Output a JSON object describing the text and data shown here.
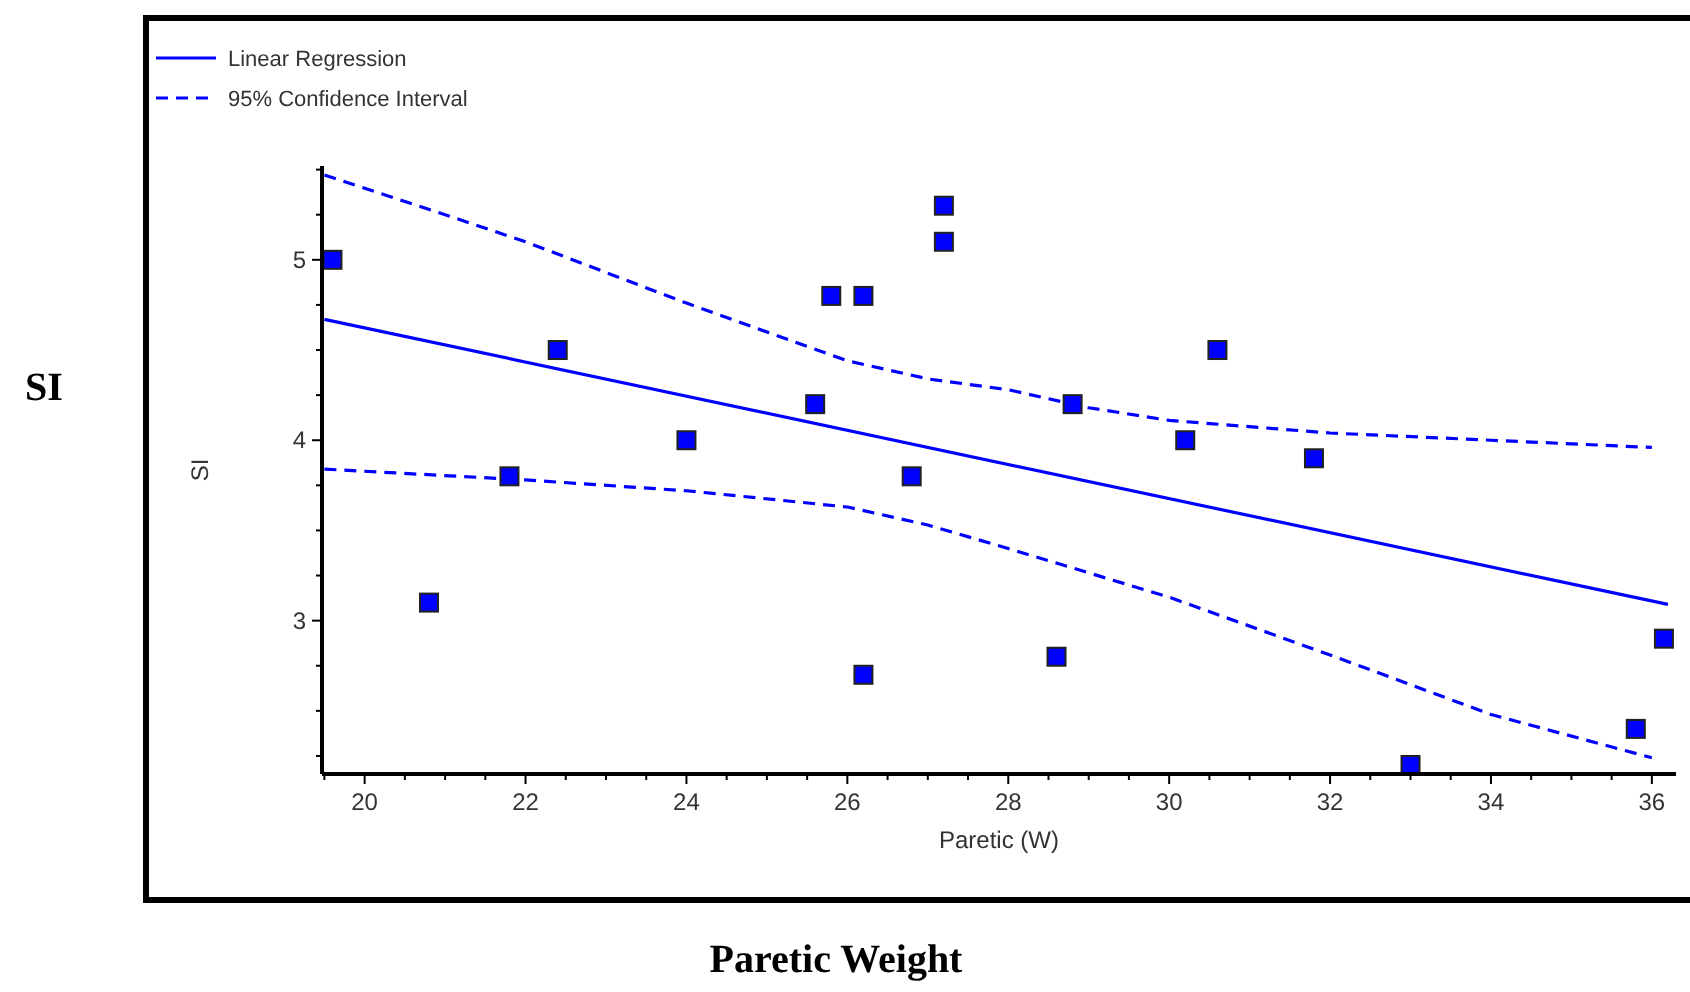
{
  "chart_data": {
    "type": "scatter",
    "xlabel": "Paretic (W)",
    "ylabel": "SI",
    "annotations": [
      "SI",
      "Paretic Weight"
    ],
    "xlim": [
      19.47,
      36.3
    ],
    "ylim": [
      2.15,
      5.52
    ],
    "xticks": [
      {
        "value": 19.5,
        "label": null
      },
      20,
      {
        "value": 20.5,
        "label": null
      },
      {
        "value": 21,
        "label": null
      },
      {
        "value": 21.5,
        "label": null
      },
      22,
      {
        "value": 22.5,
        "label": null
      },
      {
        "value": 23,
        "label": null
      },
      {
        "value": 23.5,
        "label": null
      },
      24,
      {
        "value": 24.5,
        "label": null
      },
      {
        "value": 25,
        "label": null
      },
      {
        "value": 25.5,
        "label": null
      },
      26,
      {
        "value": 26.5,
        "label": null
      },
      {
        "value": 27,
        "label": null
      },
      {
        "value": 27.5,
        "label": null
      },
      28,
      {
        "value": 28.5,
        "label": null
      },
      {
        "value": 29,
        "label": null
      },
      {
        "value": 29.5,
        "label": null
      },
      30,
      {
        "value": 30.5,
        "label": null
      },
      {
        "value": 31,
        "label": null
      },
      {
        "value": 31.5,
        "label": null
      },
      32,
      {
        "value": 32.5,
        "label": null
      },
      {
        "value": 33,
        "label": null
      },
      {
        "value": 33.5,
        "label": null
      },
      34,
      {
        "value": 34.5,
        "label": null
      },
      {
        "value": 35,
        "label": null
      },
      {
        "value": 35.5,
        "label": null
      },
      36
    ],
    "yticks": [
      {
        "value": 2.25,
        "label": null
      },
      {
        "value": 2.5,
        "label": null
      },
      {
        "value": 2.75,
        "label": null
      },
      3,
      {
        "value": 3.25,
        "label": null
      },
      {
        "value": 3.5,
        "label": null
      },
      {
        "value": 3.75,
        "label": null
      },
      4,
      {
        "value": 4.25,
        "label": null
      },
      {
        "value": 4.5,
        "label": null
      },
      {
        "value": 4.75,
        "label": null
      },
      5,
      {
        "value": 5.25,
        "label": null
      },
      {
        "value": 5.5,
        "label": null
      }
    ],
    "grid": false,
    "legend": "top left",
    "series": [
      {
        "marker": "square",
        "color": "#0000ff",
        "x": [
          19.6,
          20.8,
          21.8,
          22.4,
          24.0,
          25.6,
          25.8,
          26.2,
          26.2,
          26.8,
          27.2,
          27.2,
          28.6,
          28.8,
          30.2,
          30.6,
          31.8,
          33.0,
          35.8,
          36.15
        ],
        "values": [
          5.0,
          3.1,
          3.8,
          4.5,
          4.0,
          4.2,
          4.8,
          4.8,
          2.7,
          3.8,
          5.3,
          5.1,
          2.8,
          4.2,
          4.0,
          4.5,
          3.9,
          2.2,
          2.4,
          2.9
        ]
      },
      {
        "type": "line",
        "name": "Linear Regression",
        "color": "#0000ff",
        "line_style": "solid",
        "x": [
          19.5,
          36.2
        ],
        "values": [
          4.67,
          3.09
        ]
      },
      {
        "type": "line",
        "name": "95% Confidence Interval",
        "color": "#0000ff",
        "line_style": "dashed",
        "x": [
          19.5,
          21,
          22,
          24,
          26,
          27,
          28,
          29,
          30,
          32,
          34,
          36
        ],
        "values": [
          5.47,
          5.25,
          5.1,
          4.76,
          4.44,
          4.34,
          4.28,
          4.18,
          4.11,
          4.04,
          4.0,
          3.96
        ]
      },
      {
        "type": "line",
        "color": "#0000ff",
        "line_style": "dashed",
        "x": [
          19.5,
          22,
          24,
          26,
          27,
          28,
          30,
          32,
          34,
          36
        ],
        "values": [
          3.84,
          3.78,
          3.72,
          3.63,
          3.53,
          3.4,
          3.13,
          2.81,
          2.48,
          2.24
        ]
      }
    ]
  }
}
